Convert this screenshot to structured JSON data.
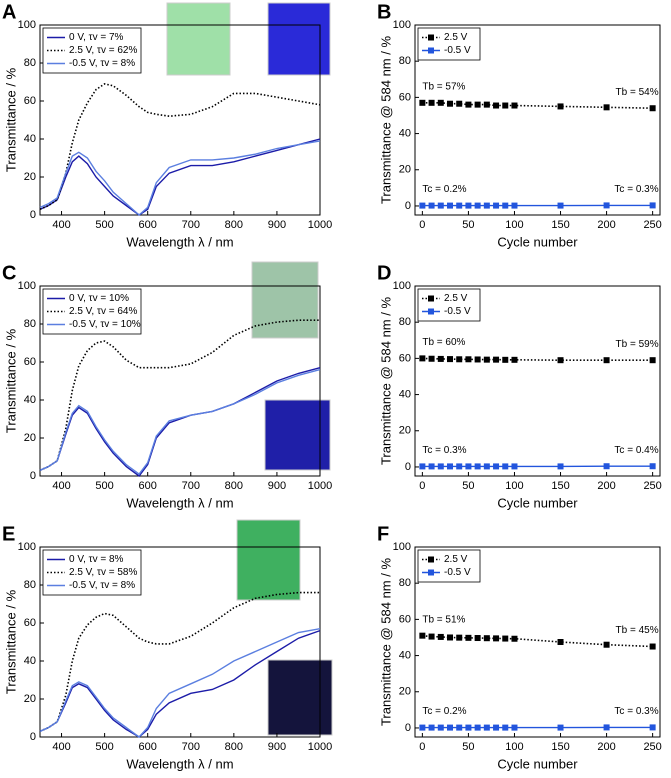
{
  "chart_data": [
    {
      "type": "line",
      "label": "A",
      "x_label": "Wavelength λ / nm",
      "y_label": "Transmittance / %",
      "x": [
        350,
        370,
        390,
        410,
        425,
        440,
        460,
        480,
        500,
        520,
        550,
        580,
        600,
        620,
        650,
        700,
        750,
        800,
        850,
        900,
        950,
        1000
      ],
      "series": [
        {
          "name": "0 V, τv = 7%",
          "color": "#1c1ca8",
          "style": "solid",
          "values": [
            3,
            5,
            8,
            20,
            28,
            31,
            27,
            20,
            15,
            10,
            5,
            0,
            3,
            15,
            22,
            26,
            26,
            28,
            31,
            34,
            37,
            40
          ]
        },
        {
          "name": "2.5 V, τv = 62%",
          "color": "#000000",
          "style": "dotted",
          "values": [
            3,
            5,
            8,
            22,
            38,
            50,
            59,
            66,
            69,
            68,
            63,
            57,
            54,
            53,
            52,
            53,
            57,
            64,
            64,
            62,
            60,
            58
          ]
        },
        {
          "name": "-0.5 V, τv = 8%",
          "color": "#5b7fe0",
          "style": "solid",
          "values": [
            4,
            6,
            9,
            22,
            31,
            33,
            30,
            23,
            18,
            12,
            6,
            0,
            4,
            17,
            25,
            29,
            29,
            30,
            32,
            35,
            37,
            39
          ]
        }
      ],
      "xlim": [
        350,
        1000
      ],
      "ylim": [
        0,
        100
      ],
      "xticks": [
        400,
        500,
        600,
        700,
        800,
        900,
        1000
      ],
      "yticks": [
        0,
        20,
        40,
        60,
        80,
        100
      ],
      "legend": "upper left"
    },
    {
      "type": "line",
      "label": "B",
      "x_label": "Cycle number",
      "y_label": "Transmittance @ 584 nm / %",
      "x": [
        0,
        10,
        20,
        30,
        40,
        50,
        60,
        70,
        80,
        90,
        100,
        150,
        200,
        250
      ],
      "series": [
        {
          "name": "2.5 V",
          "color": "#000000",
          "style": "dotted",
          "values": [
            57,
            57,
            57,
            56.5,
            56.5,
            56,
            56,
            56,
            55.5,
            55.5,
            55.5,
            55,
            54.5,
            54
          ]
        },
        {
          "name": "-0.5 V",
          "color": "#2255dd",
          "style": "solid",
          "values": [
            0.2,
            0.2,
            0.2,
            0.2,
            0.2,
            0.2,
            0.2,
            0.2,
            0.2,
            0.2,
            0.2,
            0.2,
            0.3,
            0.3
          ]
        }
      ],
      "markers": true,
      "annotations": [
        "Tb = 57%",
        "Tb = 54%",
        "Tc = 0.2%",
        "Tc = 0.3%"
      ],
      "xlim": [
        -8,
        258
      ],
      "ylim": [
        -5,
        100
      ],
      "xticks": [
        0,
        50,
        100,
        150,
        200,
        250
      ],
      "yticks": [
        0,
        20,
        40,
        60,
        80,
        100
      ],
      "legend": "upper left"
    },
    {
      "type": "line",
      "label": "C",
      "x_label": "Wavelength λ / nm",
      "y_label": "Transmittance / %",
      "x": [
        350,
        370,
        390,
        410,
        425,
        440,
        460,
        480,
        500,
        520,
        550,
        580,
        600,
        620,
        650,
        700,
        750,
        800,
        850,
        900,
        950,
        1000
      ],
      "series": [
        {
          "name": "0 V, τv = 10%",
          "color": "#1c1ca8",
          "style": "solid",
          "values": [
            3,
            5,
            8,
            22,
            32,
            36,
            33,
            25,
            18,
            12,
            5,
            0,
            6,
            20,
            28,
            32,
            34,
            38,
            44,
            50,
            54,
            57
          ]
        },
        {
          "name": "2.5 V, τv = 64%",
          "color": "#000000",
          "style": "dotted",
          "values": [
            3,
            5,
            8,
            25,
            45,
            58,
            66,
            70,
            71,
            68,
            61,
            57,
            57,
            57,
            57,
            59,
            65,
            74,
            79,
            81,
            82,
            82
          ]
        },
        {
          "name": "-0.5 V, τv = 10%",
          "color": "#5b7fe0",
          "style": "solid",
          "values": [
            3,
            5,
            8,
            23,
            33,
            37,
            34,
            26,
            19,
            13,
            6,
            1,
            7,
            21,
            29,
            32,
            34,
            38,
            43,
            49,
            53,
            56
          ]
        }
      ],
      "xlim": [
        350,
        1000
      ],
      "ylim": [
        0,
        100
      ],
      "xticks": [
        400,
        500,
        600,
        700,
        800,
        900,
        1000
      ],
      "yticks": [
        0,
        20,
        40,
        60,
        80,
        100
      ],
      "legend": "upper left"
    },
    {
      "type": "line",
      "label": "D",
      "x_label": "Cycle number",
      "y_label": "Transmittance @ 584 nm / %",
      "x": [
        0,
        10,
        20,
        30,
        40,
        50,
        60,
        70,
        80,
        90,
        100,
        150,
        200,
        250
      ],
      "series": [
        {
          "name": "2.5 V",
          "color": "#000000",
          "style": "dotted",
          "values": [
            60,
            59.8,
            59.7,
            59.6,
            59.5,
            59.5,
            59.4,
            59.3,
            59.3,
            59.2,
            59.2,
            59,
            59,
            59
          ]
        },
        {
          "name": "-0.5 V",
          "color": "#2255dd",
          "style": "solid",
          "values": [
            0.3,
            0.3,
            0.3,
            0.3,
            0.3,
            0.3,
            0.3,
            0.3,
            0.3,
            0.3,
            0.3,
            0.3,
            0.4,
            0.4
          ]
        }
      ],
      "markers": true,
      "annotations": [
        "Tb = 60%",
        "Tb = 59%",
        "Tc = 0.3%",
        "Tc = 0.4%"
      ],
      "xlim": [
        -8,
        258
      ],
      "ylim": [
        -5,
        100
      ],
      "xticks": [
        0,
        50,
        100,
        150,
        200,
        250
      ],
      "yticks": [
        0,
        20,
        40,
        60,
        80,
        100
      ],
      "legend": "upper left"
    },
    {
      "type": "line",
      "label": "E",
      "x_label": "Wavelength λ / nm",
      "y_label": "Transmittance / %",
      "x": [
        350,
        370,
        390,
        410,
        425,
        440,
        460,
        480,
        500,
        520,
        550,
        580,
        600,
        620,
        650,
        700,
        750,
        800,
        850,
        900,
        950,
        1000
      ],
      "series": [
        {
          "name": "0 V, τv = 8%",
          "color": "#1c1ca8",
          "style": "solid",
          "values": [
            3,
            5,
            8,
            18,
            26,
            28,
            26,
            20,
            14,
            9,
            4,
            0,
            4,
            12,
            18,
            23,
            25,
            30,
            38,
            45,
            52,
            56
          ]
        },
        {
          "name": "2.5 V, τv = 58%",
          "color": "#000000",
          "style": "dotted",
          "values": [
            3,
            5,
            8,
            22,
            40,
            52,
            59,
            63,
            65,
            64,
            58,
            52,
            50,
            49,
            49,
            53,
            60,
            68,
            73,
            75,
            76,
            76
          ]
        },
        {
          "name": "-0.5 V, τv = 8%",
          "color": "#5b7fe0",
          "style": "solid",
          "values": [
            3,
            5,
            8,
            19,
            27,
            29,
            27,
            21,
            15,
            10,
            5,
            0,
            5,
            15,
            23,
            28,
            33,
            40,
            45,
            50,
            55,
            57
          ]
        }
      ],
      "xlim": [
        350,
        1000
      ],
      "ylim": [
        0,
        100
      ],
      "xticks": [
        400,
        500,
        600,
        700,
        800,
        900,
        1000
      ],
      "yticks": [
        0,
        20,
        40,
        60,
        80,
        100
      ],
      "legend": "upper left"
    },
    {
      "type": "line",
      "label": "F",
      "x_label": "Cycle number",
      "y_label": "Transmittance @ 584 nm / %",
      "x": [
        0,
        10,
        20,
        30,
        40,
        50,
        60,
        70,
        80,
        90,
        100,
        150,
        200,
        250
      ],
      "series": [
        {
          "name": "2.5 V",
          "color": "#000000",
          "style": "dotted",
          "values": [
            51,
            50.5,
            50.3,
            50,
            49.9,
            49.8,
            49.7,
            49.6,
            49.5,
            49.4,
            49.3,
            47.5,
            46,
            45
          ]
        },
        {
          "name": "-0.5 V",
          "color": "#2255dd",
          "style": "solid",
          "values": [
            0.2,
            0.2,
            0.2,
            0.2,
            0.2,
            0.2,
            0.2,
            0.2,
            0.2,
            0.2,
            0.2,
            0.2,
            0.3,
            0.3
          ]
        }
      ],
      "markers": true,
      "annotations": [
        "Tb = 51%",
        "Tb = 45%",
        "Tc = 0.2%",
        "Tc = 0.3%"
      ],
      "xlim": [
        -8,
        258
      ],
      "ylim": [
        -5,
        100
      ],
      "xticks": [
        0,
        50,
        100,
        150,
        200,
        250
      ],
      "yticks": [
        0,
        20,
        40,
        60,
        80,
        100
      ],
      "legend": "upper left"
    }
  ]
}
